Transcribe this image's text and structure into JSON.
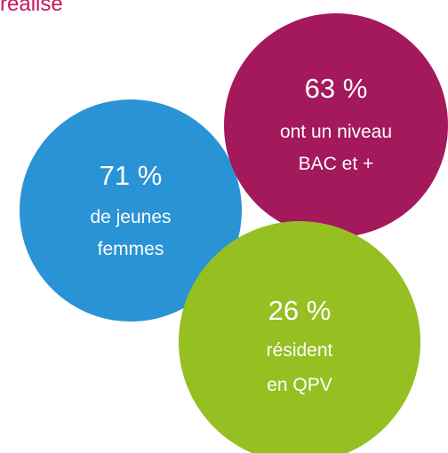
{
  "heading": "réalisé",
  "circles": [
    {
      "value": "71 %",
      "lines": [
        "de jeunes",
        "femmes"
      ],
      "color": "#2a93d5"
    },
    {
      "value": "63 %",
      "lines": [
        "ont un niveau",
        "BAC et +"
      ],
      "color": "#a3195b"
    },
    {
      "value": "26 %",
      "lines": [
        "résident",
        "en QPV"
      ],
      "color": "#96bf22"
    }
  ]
}
